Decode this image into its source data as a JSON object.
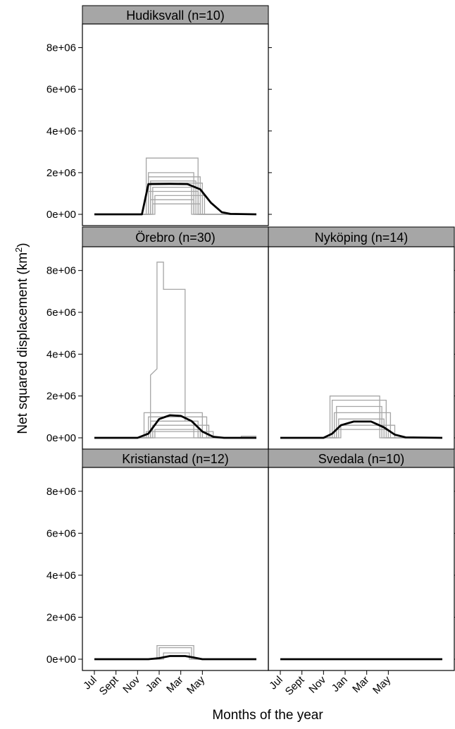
{
  "chart_data": {
    "type": "line",
    "xlabel": "Months of the year",
    "ylabel": "Net squared displacement (km",
    "ylabel_sup": "2",
    "ylabel_close": ")",
    "x_ticks": [
      "Jul",
      "Sept",
      "Nov",
      "Jan",
      "Mar",
      "May"
    ],
    "y_ticks": [
      "0e+00",
      "2e+06",
      "4e+06",
      "6e+06",
      "8e+06"
    ],
    "ylim": [
      0,
      9000000
    ],
    "x_unit": "months since July",
    "panels": [
      {
        "title": "Hudiksvall (n=10)",
        "mean_curve": [
          [
            0,
            0
          ],
          [
            2.2,
            0
          ],
          [
            2.5,
            1450000
          ],
          [
            3.5,
            1460000
          ],
          [
            4.3,
            1450000
          ],
          [
            4.9,
            1200000
          ],
          [
            5.4,
            550000
          ],
          [
            5.9,
            100000
          ],
          [
            6.3,
            20000
          ],
          [
            7.5,
            0
          ]
        ],
        "individuals": [
          [
            [
              0,
              0
            ],
            [
              2.4,
              0
            ],
            [
              2.4,
              2700000
            ],
            [
              4.8,
              2700000
            ],
            [
              4.8,
              0
            ],
            [
              7.5,
              0
            ]
          ],
          [
            [
              0,
              0
            ],
            [
              2.5,
              0
            ],
            [
              2.5,
              2000000
            ],
            [
              4.6,
              2000000
            ],
            [
              4.6,
              0
            ],
            [
              7.5,
              0
            ]
          ],
          [
            [
              0,
              0
            ],
            [
              2.5,
              0
            ],
            [
              2.5,
              1800000
            ],
            [
              4.9,
              1800000
            ],
            [
              4.9,
              0
            ],
            [
              7.5,
              0
            ]
          ],
          [
            [
              0,
              0
            ],
            [
              2.6,
              0
            ],
            [
              2.6,
              1600000
            ],
            [
              4.7,
              1600000
            ],
            [
              4.7,
              0
            ],
            [
              7.5,
              0
            ]
          ],
          [
            [
              0,
              0
            ],
            [
              2.6,
              0
            ],
            [
              2.6,
              1500000
            ],
            [
              5.0,
              1500000
            ],
            [
              5.0,
              0
            ],
            [
              7.5,
              0
            ]
          ],
          [
            [
              0,
              0
            ],
            [
              2.7,
              0
            ],
            [
              2.7,
              1300000
            ],
            [
              4.5,
              1300000
            ],
            [
              4.5,
              0
            ],
            [
              7.5,
              0
            ]
          ],
          [
            [
              0,
              0
            ],
            [
              2.5,
              0
            ],
            [
              2.5,
              1100000
            ],
            [
              4.8,
              1100000
            ],
            [
              4.8,
              0
            ],
            [
              7.5,
              0
            ]
          ],
          [
            [
              0,
              0
            ],
            [
              2.8,
              0
            ],
            [
              2.8,
              900000
            ],
            [
              5.1,
              900000
            ],
            [
              5.1,
              0
            ],
            [
              7.5,
              0
            ]
          ],
          [
            [
              0,
              0
            ],
            [
              2.6,
              0
            ],
            [
              2.6,
              700000
            ],
            [
              4.6,
              700000
            ],
            [
              4.6,
              0
            ],
            [
              7.5,
              0
            ]
          ],
          [
            [
              0,
              0
            ],
            [
              2.7,
              0
            ],
            [
              2.7,
              500000
            ],
            [
              4.9,
              500000
            ],
            [
              4.9,
              0
            ],
            [
              7.5,
              0
            ]
          ]
        ]
      },
      {
        "title": "Örebro (n=30)",
        "mean_curve": [
          [
            0,
            0
          ],
          [
            2.0,
            0
          ],
          [
            2.5,
            200000
          ],
          [
            3.0,
            900000
          ],
          [
            3.5,
            1080000
          ],
          [
            4.0,
            1050000
          ],
          [
            4.5,
            800000
          ],
          [
            5.0,
            300000
          ],
          [
            5.5,
            50000
          ],
          [
            6.0,
            0
          ],
          [
            7.5,
            0
          ]
        ],
        "individuals": [
          [
            [
              0,
              0
            ],
            [
              2.6,
              0
            ],
            [
              2.6,
              3000000
            ],
            [
              2.9,
              3300000
            ],
            [
              2.9,
              8400000
            ],
            [
              3.2,
              8400000
            ],
            [
              3.2,
              7100000
            ],
            [
              4.2,
              7100000
            ],
            [
              4.2,
              800000
            ],
            [
              4.6,
              800000
            ],
            [
              4.6,
              0
            ],
            [
              7.5,
              0
            ]
          ],
          [
            [
              0,
              0
            ],
            [
              2.3,
              0
            ],
            [
              2.3,
              1200000
            ],
            [
              5.0,
              1200000
            ],
            [
              5.0,
              0
            ],
            [
              7.5,
              0
            ]
          ],
          [
            [
              0,
              0
            ],
            [
              2.5,
              0
            ],
            [
              2.5,
              1000000
            ],
            [
              5.2,
              1000000
            ],
            [
              5.2,
              0
            ],
            [
              7.5,
              0
            ]
          ],
          [
            [
              0,
              0
            ],
            [
              2.6,
              0
            ],
            [
              2.6,
              800000
            ],
            [
              4.8,
              800000
            ],
            [
              4.8,
              0
            ],
            [
              7.5,
              0
            ]
          ],
          [
            [
              0,
              0
            ],
            [
              2.7,
              0
            ],
            [
              2.7,
              600000
            ],
            [
              5.3,
              600000
            ],
            [
              5.3,
              0
            ],
            [
              7.5,
              0
            ]
          ],
          [
            [
              0,
              0
            ],
            [
              2.8,
              0
            ],
            [
              2.8,
              400000
            ],
            [
              4.9,
              400000
            ],
            [
              4.9,
              0
            ],
            [
              7.5,
              0
            ]
          ],
          [
            [
              0,
              0
            ],
            [
              2.4,
              0
            ],
            [
              2.4,
              300000
            ],
            [
              5.5,
              300000
            ],
            [
              5.5,
              0
            ],
            [
              7.5,
              0
            ]
          ],
          [
            [
              0,
              0
            ],
            [
              6.8,
              0
            ],
            [
              6.8,
              80000
            ],
            [
              7.5,
              80000
            ]
          ]
        ]
      },
      {
        "title": "Nyköping (n=14)",
        "mean_curve": [
          [
            0,
            0
          ],
          [
            2.0,
            0
          ],
          [
            2.4,
            200000
          ],
          [
            2.8,
            600000
          ],
          [
            3.4,
            780000
          ],
          [
            4.2,
            780000
          ],
          [
            4.8,
            500000
          ],
          [
            5.3,
            150000
          ],
          [
            5.8,
            20000
          ],
          [
            7.5,
            0
          ]
        ],
        "individuals": [
          [
            [
              0,
              0
            ],
            [
              2.3,
              0
            ],
            [
              2.3,
              2000000
            ],
            [
              4.6,
              2000000
            ],
            [
              4.6,
              0
            ],
            [
              7.5,
              0
            ]
          ],
          [
            [
              0,
              0
            ],
            [
              2.4,
              0
            ],
            [
              2.4,
              1800000
            ],
            [
              4.9,
              1800000
            ],
            [
              4.9,
              0
            ],
            [
              7.5,
              0
            ]
          ],
          [
            [
              0,
              0
            ],
            [
              2.6,
              0
            ],
            [
              2.6,
              1500000
            ],
            [
              4.7,
              1500000
            ],
            [
              4.7,
              0
            ],
            [
              7.5,
              0
            ]
          ],
          [
            [
              0,
              0
            ],
            [
              2.5,
              0
            ],
            [
              2.5,
              1200000
            ],
            [
              5.1,
              1200000
            ],
            [
              5.1,
              0
            ],
            [
              7.5,
              0
            ]
          ],
          [
            [
              0,
              0
            ],
            [
              2.7,
              0
            ],
            [
              2.7,
              900000
            ],
            [
              4.8,
              900000
            ],
            [
              4.8,
              0
            ],
            [
              7.5,
              0
            ]
          ],
          [
            [
              0,
              0
            ],
            [
              2.8,
              0
            ],
            [
              2.8,
              600000
            ],
            [
              5.3,
              600000
            ],
            [
              5.3,
              0
            ],
            [
              7.5,
              0
            ]
          ],
          [
            [
              0,
              0
            ],
            [
              2.6,
              0
            ],
            [
              2.6,
              400000
            ],
            [
              5.0,
              400000
            ],
            [
              5.0,
              0
            ],
            [
              7.5,
              0
            ]
          ]
        ]
      },
      {
        "title": "Kristianstad (n=12)",
        "mean_curve": [
          [
            0,
            0
          ],
          [
            2.5,
            0
          ],
          [
            3.0,
            50000
          ],
          [
            3.5,
            150000
          ],
          [
            4.2,
            150000
          ],
          [
            4.6,
            80000
          ],
          [
            5.0,
            0
          ],
          [
            7.5,
            0
          ]
        ],
        "individuals": [
          [
            [
              0,
              0
            ],
            [
              2.9,
              0
            ],
            [
              2.9,
              650000
            ],
            [
              4.6,
              650000
            ],
            [
              4.6,
              0
            ],
            [
              7.5,
              0
            ]
          ],
          [
            [
              0,
              0
            ],
            [
              3.0,
              0
            ],
            [
              3.0,
              550000
            ],
            [
              4.5,
              550000
            ],
            [
              4.5,
              0
            ],
            [
              7.5,
              0
            ]
          ],
          [
            [
              0,
              0
            ],
            [
              3.2,
              0
            ],
            [
              3.2,
              300000
            ],
            [
              4.4,
              300000
            ],
            [
              4.4,
              0
            ],
            [
              7.5,
              0
            ]
          ]
        ]
      },
      {
        "title": "Svedala (n=10)",
        "mean_curve": [
          [
            0,
            0
          ],
          [
            7.5,
            0
          ]
        ],
        "individuals": [
          [
            [
              0,
              0
            ],
            [
              7.5,
              0
            ]
          ]
        ]
      }
    ]
  },
  "colors": {
    "strip_fill": "#a6a6a6",
    "individual_line": "#a6a6a6",
    "mean_line": "#000000",
    "frame": "#000000"
  }
}
